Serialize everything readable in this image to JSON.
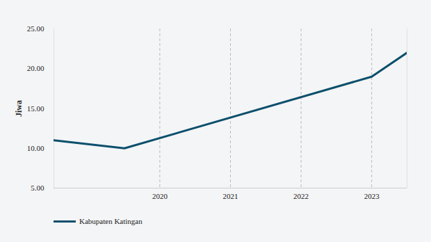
{
  "chart_data": {
    "type": "line",
    "x": [
      2018.5,
      2019.5,
      2023,
      2023.5
    ],
    "series": [
      {
        "name": "Kabupaten Katingan",
        "color": "#0b4f6c",
        "values": [
          11,
          10,
          19,
          22
        ]
      }
    ],
    "xlim": [
      2018.5,
      2023.5
    ],
    "xticks": [
      2020,
      2021,
      2022,
      2023
    ],
    "ylim": [
      5,
      25
    ],
    "yticks": [
      {
        "value": 5,
        "label": "5.00"
      },
      {
        "value": 10,
        "label": "10.00"
      },
      {
        "value": 15,
        "label": "15.00"
      },
      {
        "value": 20,
        "label": "20.00"
      },
      {
        "value": 25,
        "label": "25.00"
      }
    ],
    "y_label": "Jiwa",
    "grid": true,
    "legend": "bottom-left"
  }
}
